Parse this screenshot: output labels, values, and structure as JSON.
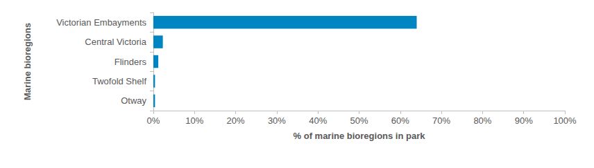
{
  "chart_data": {
    "type": "bar",
    "orientation": "horizontal",
    "x_label": "% of marine bioregions in park",
    "y_label": "Marine bioregions",
    "categories": [
      "Victorian Embayments",
      "Central Victoria",
      "Flinders",
      "Twofold Shelf",
      "Otway"
    ],
    "values": [
      64,
      2.3,
      1.2,
      0.4,
      0.4
    ],
    "color": "#0085c3",
    "xlim": [
      0,
      100
    ],
    "xticks": [
      {
        "value": 0,
        "label": "0%"
      },
      {
        "value": 10,
        "label": "10%"
      },
      {
        "value": 20,
        "label": "20%"
      },
      {
        "value": 30,
        "label": "30%"
      },
      {
        "value": 40,
        "label": "40%"
      },
      {
        "value": 50,
        "label": "50%"
      },
      {
        "value": 60,
        "label": "60%"
      },
      {
        "value": 70,
        "label": "70%"
      },
      {
        "value": 80,
        "label": "80%"
      },
      {
        "value": 90,
        "label": "90%"
      },
      {
        "value": 100,
        "label": "100%"
      }
    ],
    "grid": false
  }
}
